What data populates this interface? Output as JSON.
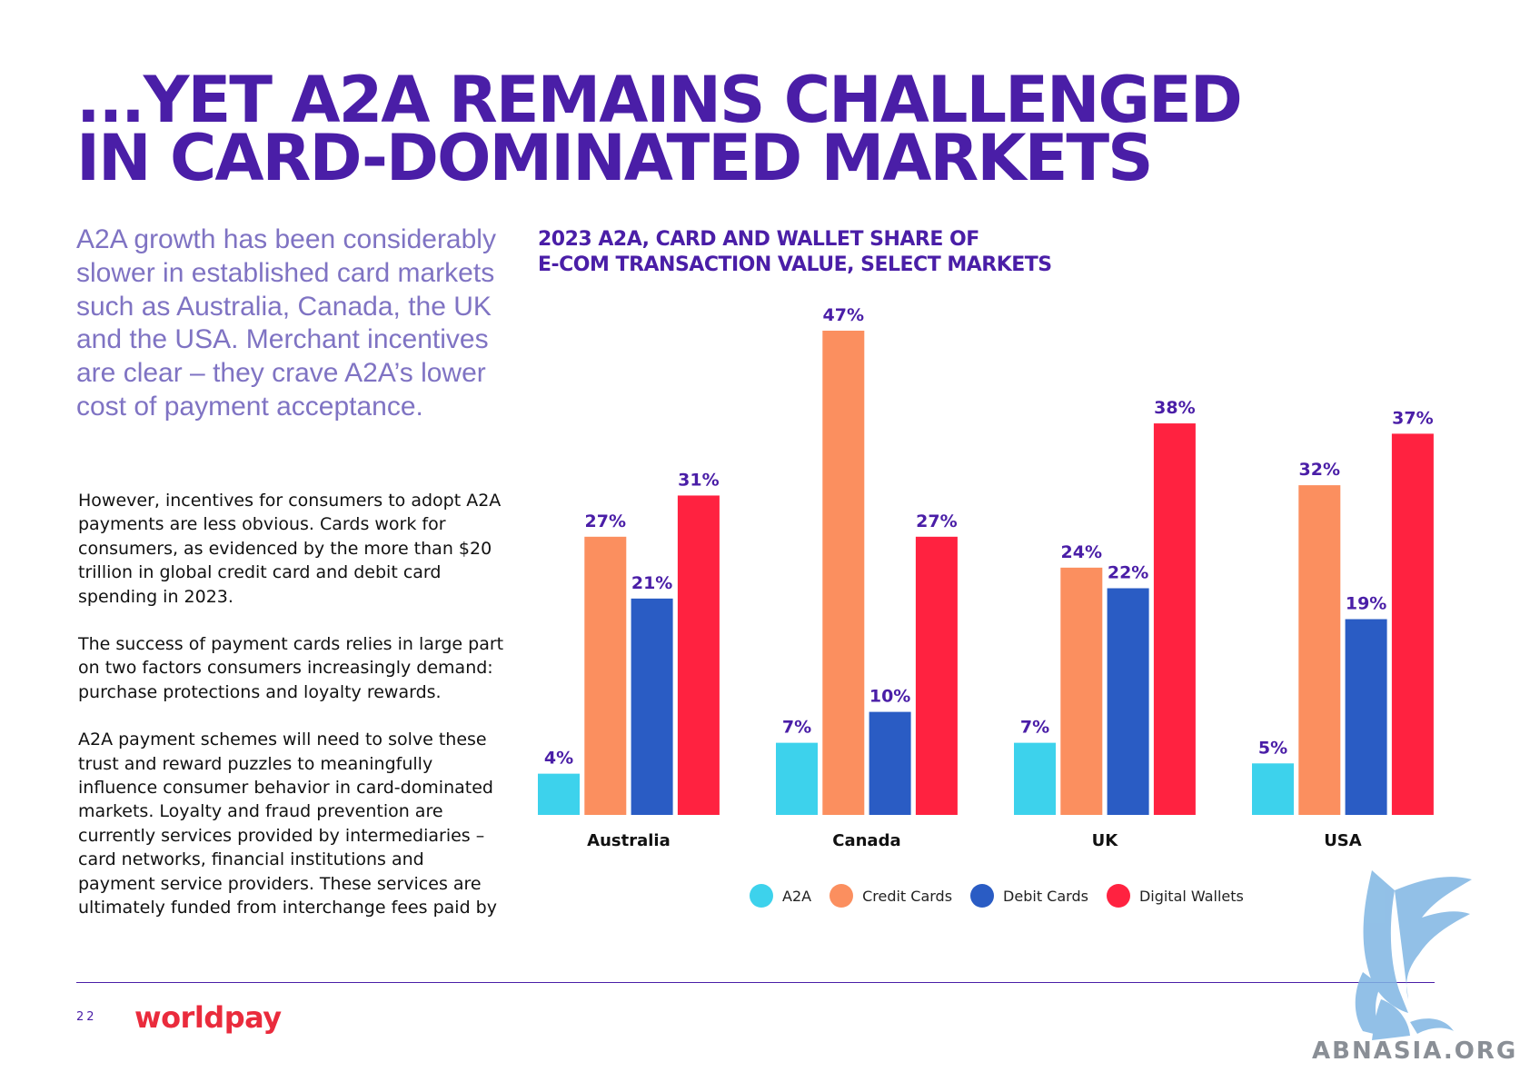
{
  "headline": {
    "line1": "...YET A2A REMAINS CHALLENGED",
    "line2": "IN CARD-DOMINATED MARKETS"
  },
  "lead": "A2A growth has been considerably slower in established card markets such as Australia, Canada, the UK and the USA. Merchant incentives are clear – they crave A2A’s lower cost of payment acceptance.",
  "body": [
    "However, incentives for consumers to adopt A2A payments are less obvious. Cards work for consumers, as evidenced by the more than $20 trillion in global credit card and debit card spending in 2023.",
    "The success of payment cards relies in large part on two factors consumers increasingly demand: purchase protections and loyalty rewards.",
    "A2A payment schemes will need to solve these trust and reward puzzles to meaningfully influence consumer behavior in card-dominated markets. Loyalty and fraud prevention are currently services provided by intermediaries – card networks, financial institutions and payment service providers. These services are ultimately funded from interchange fees paid by"
  ],
  "chart_data": {
    "type": "bar",
    "title_line1": "2023 A2A, CARD AND WALLET SHARE OF",
    "title_line2": "E-COM TRANSACTION VALUE, SELECT MARKETS",
    "categories": [
      "Australia",
      "Canada",
      "UK",
      "USA"
    ],
    "series": [
      {
        "name": "A2A",
        "color": "#3dd2ec",
        "values": [
          4,
          7,
          7,
          5
        ]
      },
      {
        "name": "Credit Cards",
        "color": "#fb8f5f",
        "values": [
          27,
          47,
          24,
          32
        ]
      },
      {
        "name": "Debit Cards",
        "color": "#2a5cc4",
        "values": [
          21,
          10,
          22,
          19
        ]
      },
      {
        "name": "Digital Wallets",
        "color": "#ff2240",
        "values": [
          31,
          27,
          38,
          37
        ]
      }
    ],
    "value_suffix": "%",
    "label_color": "#4a1ea7",
    "ylim": [
      0,
      47
    ],
    "legend_position": "bottom"
  },
  "footer": {
    "page_number": "22",
    "brand": "worldpay"
  },
  "watermark": {
    "text": "ABNASIA.ORG",
    "icon": "griffin-icon"
  }
}
